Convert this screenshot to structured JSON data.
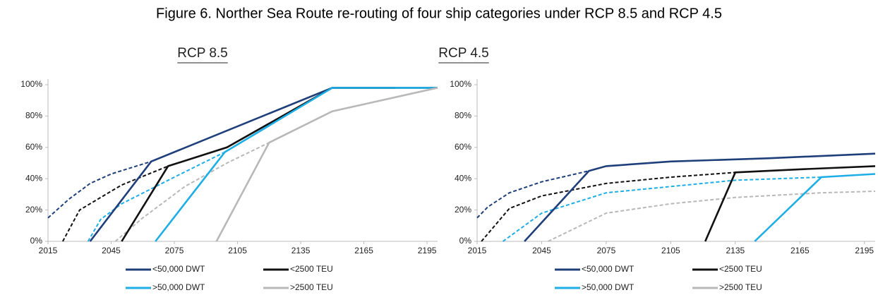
{
  "title": "Figure 6.  Norther Sea Route re-routing of four ship categories under RCP 8.5 and RCP 4.5",
  "chart_data": [
    {
      "type": "line",
      "title": "RCP 8.5",
      "xlim": [
        2015,
        2200
      ],
      "xticks": [
        2015,
        2045,
        2075,
        2105,
        2135,
        2165,
        2195
      ],
      "ylim": [
        0,
        100
      ],
      "yticks": [
        {
          "value": 0,
          "label": "0%"
        },
        {
          "value": 20,
          "label": "20%"
        },
        {
          "value": 40,
          "label": "40%"
        },
        {
          "value": 60,
          "label": "60%"
        },
        {
          "value": 80,
          "label": "80%"
        },
        {
          "value": 100,
          "label": "100%"
        }
      ],
      "series": [
        {
          "name": "<50,000 DWT",
          "color": "#1f3f7a",
          "x": [
            2035,
            2064,
            2150,
            2200
          ],
          "values": [
            0,
            51,
            98,
            98
          ],
          "dashed_x": [
            2015,
            2025,
            2035,
            2045,
            2064
          ],
          "dashed_values": [
            15,
            27,
            37,
            43,
            51
          ]
        },
        {
          "name": "<2500 TEU",
          "color": "#111111",
          "x": [
            2050,
            2072,
            2100,
            2150,
            2180
          ],
          "values": [
            0,
            48,
            60,
            98,
            98
          ],
          "dashed_x": [
            2022,
            2030,
            2040,
            2050,
            2072
          ],
          "dashed_values": [
            0,
            20,
            28,
            36,
            48
          ]
        },
        {
          "name": ">50,000 DWT",
          "color": "#1eaee6",
          "x": [
            2066,
            2099,
            2150,
            2200
          ],
          "values": [
            0,
            57,
            98,
            98
          ],
          "dashed_x": [
            2034,
            2040,
            2050,
            2075,
            2099
          ],
          "dashed_values": [
            0,
            14,
            24,
            41,
            57
          ]
        },
        {
          "name": ">2500 TEU",
          "color": "#b8b8b8",
          "x": [
            2095,
            2120,
            2150,
            2200
          ],
          "values": [
            0,
            63,
            83,
            98
          ],
          "dashed_x": [
            2047,
            2060,
            2080,
            2100,
            2120
          ],
          "dashed_values": [
            0,
            15,
            35,
            50,
            63
          ]
        }
      ]
    },
    {
      "type": "line",
      "title": "RCP 4.5",
      "xlim": [
        2015,
        2200
      ],
      "xticks": [
        2015,
        2045,
        2075,
        2105,
        2135,
        2165,
        2195
      ],
      "ylim": [
        0,
        100
      ],
      "yticks": [
        {
          "value": 0,
          "label": "0%"
        },
        {
          "value": 20,
          "label": "20%"
        },
        {
          "value": 40,
          "label": "40%"
        },
        {
          "value": 60,
          "label": "60%"
        },
        {
          "value": 80,
          "label": "80%"
        },
        {
          "value": 100,
          "label": "100%"
        }
      ],
      "series": [
        {
          "name": "<50,000 DWT",
          "color": "#1f3f7a",
          "x": [
            2037,
            2067,
            2075,
            2105,
            2150,
            2200
          ],
          "values": [
            0,
            45,
            48,
            51,
            53,
            56
          ],
          "dashed_x": [
            2015,
            2020,
            2030,
            2045,
            2067
          ],
          "dashed_values": [
            15,
            22,
            31,
            38,
            45
          ]
        },
        {
          "name": "<2500 TEU",
          "color": "#111111",
          "x": [
            2121,
            2135,
            2165,
            2200
          ],
          "values": [
            0,
            44,
            46,
            48
          ],
          "dashed_x": [
            2017,
            2030,
            2045,
            2075,
            2105,
            2135
          ],
          "dashed_values": [
            0,
            21,
            29,
            37,
            41,
            44
          ]
        },
        {
          "name": ">50,000 DWT",
          "color": "#1eaee6",
          "x": [
            2144,
            2175,
            2200
          ],
          "values": [
            0,
            41,
            43
          ],
          "dashed_x": [
            2027,
            2045,
            2075,
            2105,
            2135,
            2175
          ],
          "dashed_values": [
            0,
            18,
            31,
            35,
            39,
            41
          ]
        },
        {
          "name": ">2500 TEU",
          "color": "#b8b8b8",
          "dashed_x": [
            2048,
            2075,
            2105,
            2135,
            2175,
            2200
          ],
          "dashed_values": [
            0,
            18,
            24,
            28,
            31,
            32
          ]
        }
      ]
    }
  ]
}
